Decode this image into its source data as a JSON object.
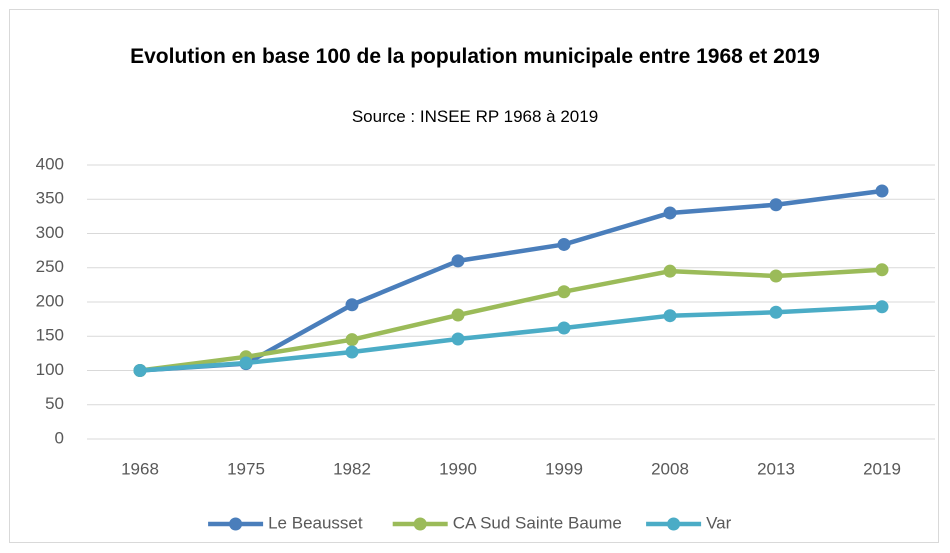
{
  "chart_data": {
    "type": "line",
    "title": "Evolution en base 100 de la population municipale entre 1968 et 2019",
    "subtitle": "Source : INSEE RP 1968 à 2019",
    "categories": [
      "1968",
      "1975",
      "1982",
      "1990",
      "1999",
      "2008",
      "2013",
      "2019"
    ],
    "series": [
      {
        "name": "Le Beausset",
        "color": "#4a7ebb",
        "values": [
          100,
          110,
          196,
          260,
          284,
          330,
          342,
          362
        ]
      },
      {
        "name": "CA Sud Sainte Baume",
        "color": "#9bbb59",
        "values": [
          100,
          120,
          145,
          181,
          215,
          245,
          238,
          247
        ]
      },
      {
        "name": "Var",
        "color": "#4bacc6",
        "values": [
          100,
          111,
          127,
          146,
          162,
          180,
          185,
          193
        ]
      }
    ],
    "ylim": [
      0,
      400
    ],
    "yticks": [
      0,
      50,
      100,
      150,
      200,
      250,
      300,
      350,
      400
    ],
    "grid": true,
    "legend": "bottom"
  }
}
